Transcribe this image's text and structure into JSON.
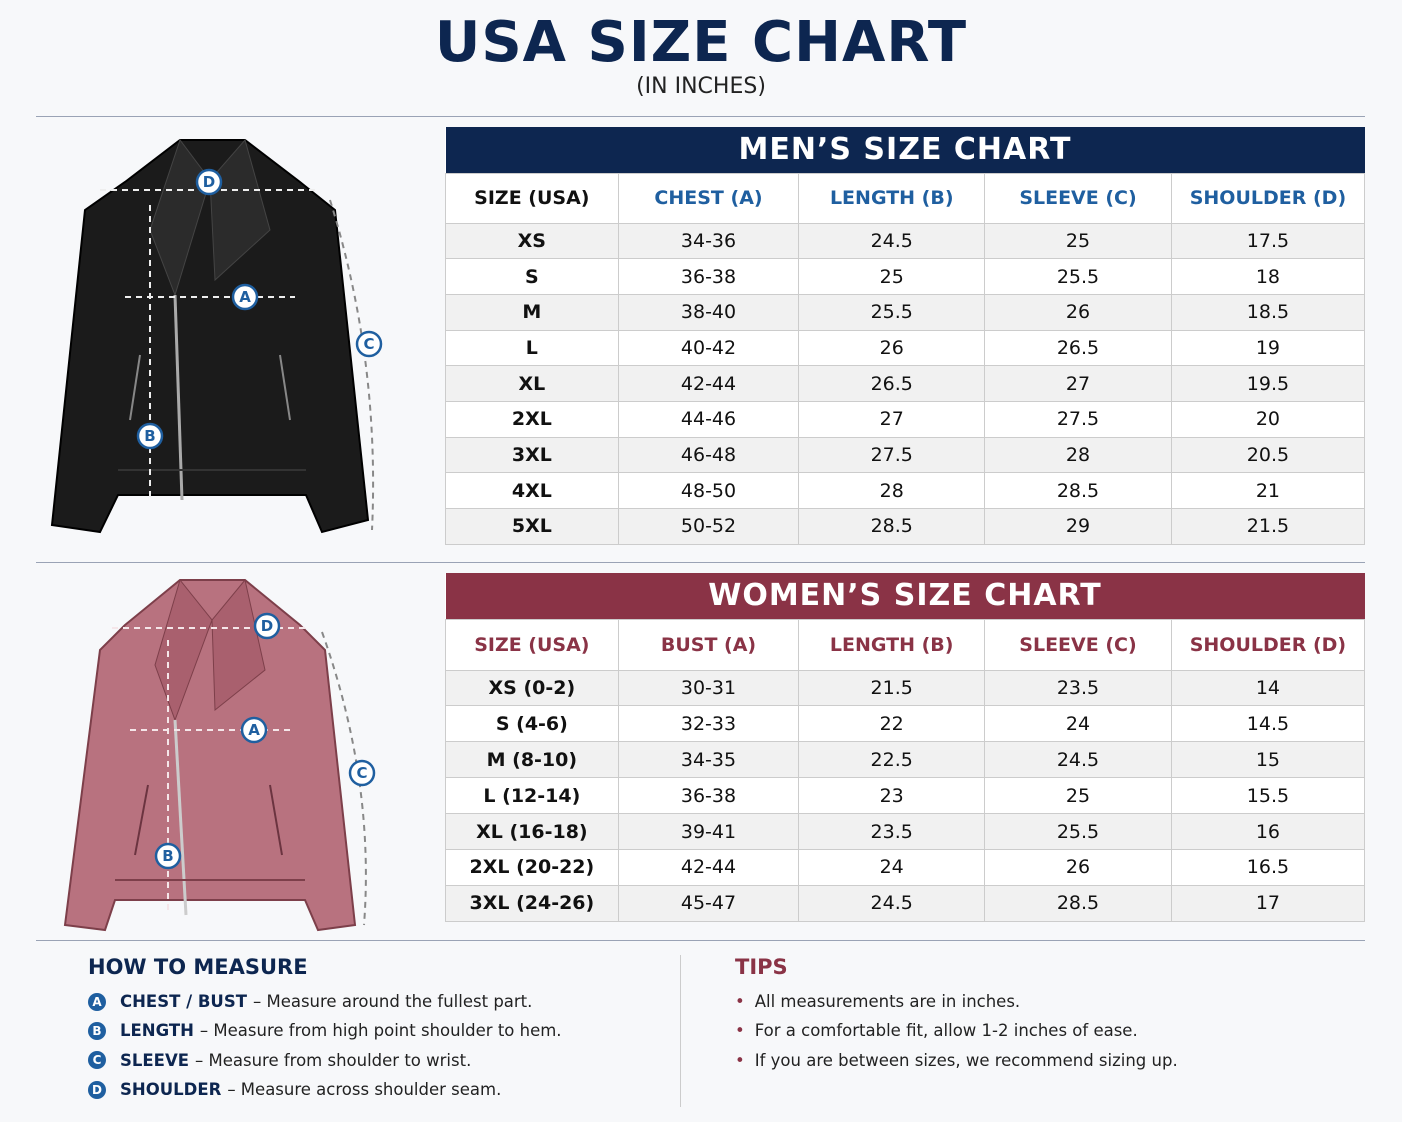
{
  "header": {
    "title": "USA SIZE CHART",
    "subtitle": "(IN INCHES)"
  },
  "mens": {
    "title": "MEN’S SIZE CHART",
    "columns": [
      "SIZE (USA)",
      "CHEST (A)",
      "LENGTH (B)",
      "SLEEVE (C)",
      "SHOULDER (D)"
    ],
    "rows": [
      [
        "XS",
        "34-36",
        24.5,
        25,
        17.5
      ],
      [
        "S",
        "36-38",
        25,
        25.5,
        18
      ],
      [
        "M",
        "38-40",
        25.5,
        26,
        18.5
      ],
      [
        "L",
        "40-42",
        26,
        26.5,
        19
      ],
      [
        "XL",
        "42-44",
        26.5,
        27,
        19.5
      ],
      [
        "2XL",
        "44-46",
        27,
        27.5,
        20
      ],
      [
        "3XL",
        "46-48",
        27.5,
        28,
        20.5
      ],
      [
        "4XL",
        "48-50",
        28,
        28.5,
        21
      ],
      [
        "5XL",
        "50-52",
        28.5,
        29,
        21.5
      ]
    ]
  },
  "womens": {
    "title": "WOMEN’S SIZE CHART",
    "columns": [
      "SIZE (USA)",
      "BUST (A)",
      "LENGTH (B)",
      "SLEEVE (C)",
      "SHOULDER (D)"
    ],
    "rows": [
      [
        "XS (0-2)",
        "30-31",
        21.5,
        23.5,
        14
      ],
      [
        "S (4-6)",
        "32-33",
        22,
        24,
        14.5
      ],
      [
        "M (8-10)",
        "34-35",
        22.5,
        24.5,
        15
      ],
      [
        "L (12-14)",
        "36-38",
        23,
        25,
        15.5
      ],
      [
        "XL (16-18)",
        "39-41",
        23.5,
        25.5,
        16
      ],
      [
        "2XL (20-22)",
        "42-44",
        24,
        26,
        16.5
      ],
      [
        "3XL (24-26)",
        "45-47",
        24.5,
        28.5,
        17
      ]
    ]
  },
  "how_to_measure": {
    "title": "HOW TO MEASURE",
    "items": [
      {
        "letter": "A",
        "term": "CHEST / BUST",
        "text": "– Measure around the fullest part."
      },
      {
        "letter": "B",
        "term": "LENGTH",
        "text": "– Measure from high point shoulder to hem."
      },
      {
        "letter": "C",
        "term": "SLEEVE",
        "text": "– Measure from shoulder to wrist."
      },
      {
        "letter": "D",
        "term": "SHOULDER",
        "text": "– Measure across shoulder seam."
      }
    ]
  },
  "tips": {
    "title": "TIPS",
    "items": [
      "All measurements are in inches.",
      "For a comfortable fit, allow 1-2 inches of ease.",
      "If you are between sizes, we recommend sizing up."
    ]
  }
}
